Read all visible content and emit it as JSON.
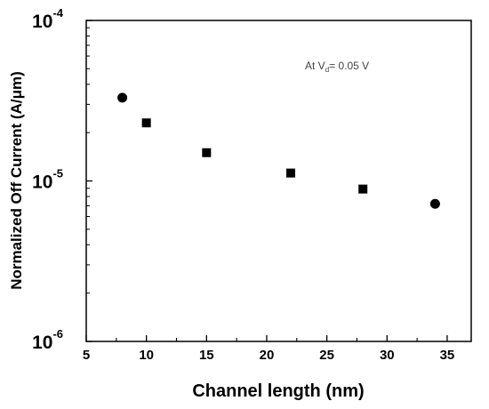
{
  "chart_data": {
    "type": "scatter",
    "xlabel": "Channel length (nm)",
    "ylabel": "Normalized Off Current (A/μm)",
    "x_ticks": [
      "5",
      "10",
      "15",
      "20",
      "25",
      "30",
      "35"
    ],
    "y_ticks": [
      {
        "base": "10",
        "exp": "-6",
        "value": 1e-06
      },
      {
        "base": "10",
        "exp": "-5",
        "value": 1e-05
      },
      {
        "base": "10",
        "exp": "-4",
        "value": 0.0001
      }
    ],
    "xlim": [
      5,
      37
    ],
    "ylim": [
      1e-06,
      0.0001
    ],
    "yscale": "log",
    "grid": false,
    "annotation": {
      "prefix": "At V",
      "subscript": "d",
      "suffix": "= 0.05 V"
    },
    "series": [
      {
        "values": [
          {
            "x": 8,
            "y": 3.3e-05,
            "marker": "circle"
          },
          {
            "x": 10,
            "y": 2.3e-05,
            "marker": "square"
          },
          {
            "x": 15,
            "y": 1.5e-05,
            "marker": "square"
          },
          {
            "x": 22,
            "y": 1.12e-05,
            "marker": "square"
          },
          {
            "x": 28,
            "y": 8.9e-06,
            "marker": "square"
          },
          {
            "x": 34,
            "y": 7.2e-06,
            "marker": "circle"
          }
        ]
      }
    ]
  }
}
